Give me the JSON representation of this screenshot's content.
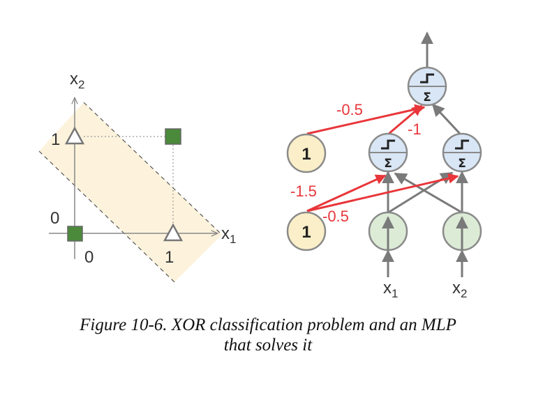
{
  "left_plot": {
    "x_axis_label": "x",
    "x_axis_sub": "1",
    "y_axis_label": "x",
    "y_axis_sub": "2",
    "x_ticks": [
      "0",
      "1"
    ],
    "y_ticks": [
      "0",
      "1"
    ],
    "points": [
      {
        "x1": 0,
        "x2": 0,
        "marker": "square",
        "class": 0
      },
      {
        "x1": 1,
        "x2": 1,
        "marker": "square",
        "class": 0
      },
      {
        "x1": 0,
        "x2": 1,
        "marker": "triangle",
        "class": 1
      },
      {
        "x1": 1,
        "x2": 0,
        "marker": "triangle",
        "class": 1
      }
    ],
    "colors": {
      "square": "#4a8a3a",
      "triangle_fill": "#ffffff",
      "triangle_stroke": "#777777",
      "band": "#fdf3dc"
    }
  },
  "network": {
    "bias_label": "1",
    "weights": {
      "output_bias": "-0.5",
      "hidden_to_output": "-1",
      "hidden_bias_top": "-1.5",
      "hidden_bias_bottom": "-0.5"
    },
    "sigma_symbol": "Σ",
    "input_label": "x",
    "inputs": [
      "1",
      "2"
    ],
    "colors": {
      "neuron": "#d9e6f5",
      "input": "#dcebd6",
      "bias": "#fbefc9",
      "highlight": "#e8363a",
      "edge": "#7a7a7a"
    }
  },
  "caption": {
    "line1": "Figure 10-6. XOR classification problem and an MLP",
    "line2": "that solves it"
  }
}
